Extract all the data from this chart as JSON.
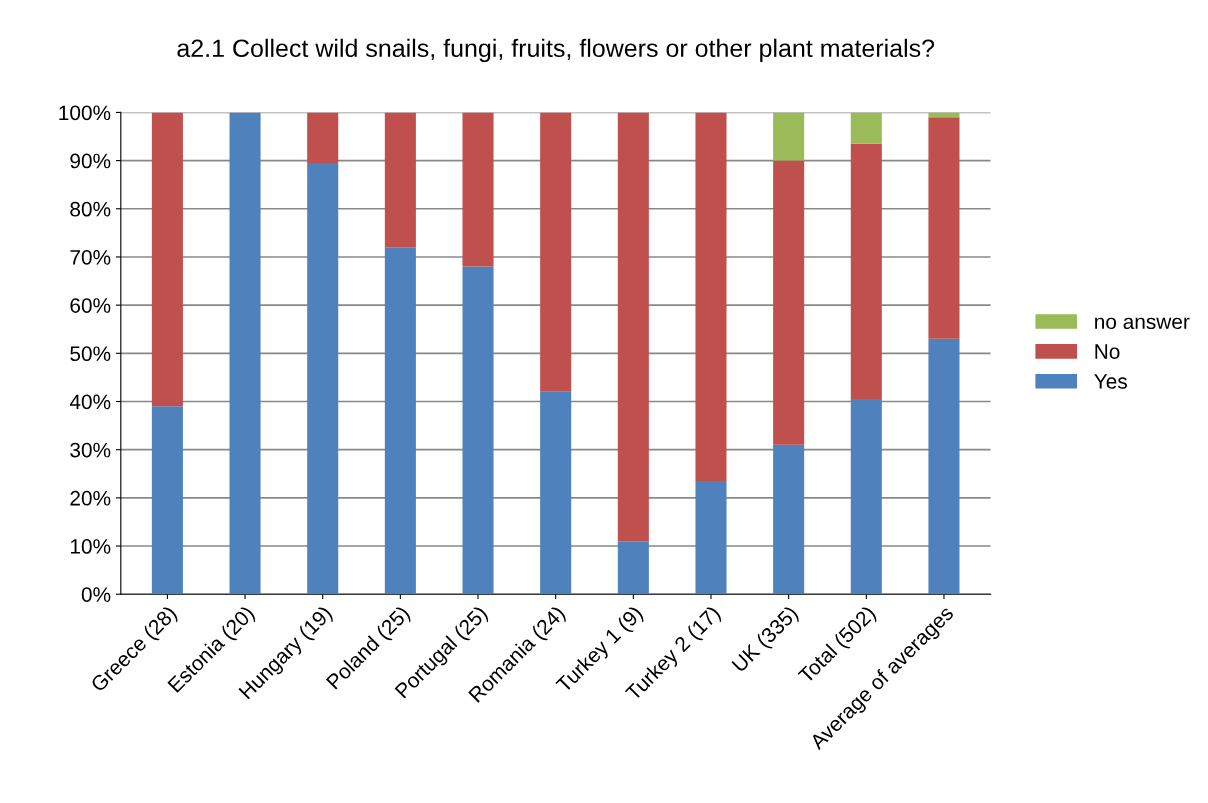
{
  "chart_data": {
    "type": "bar",
    "stacked": true,
    "title": "a2.1 Collect wild snails, fungi, fruits, flowers or other plant materials?",
    "categories": [
      "Greece (28)",
      "Estonia (20)",
      "Hungary (19)",
      "Poland (25)",
      "Portugal (25)",
      "Romania (24)",
      "Turkey 1 (9)",
      "Turkey 2 (17)",
      "UK (335)",
      "Total (502)",
      "Average of averages"
    ],
    "series": [
      {
        "name": "Yes",
        "color": "#4f81bd",
        "values": [
          39,
          100,
          89.5,
          72,
          68,
          42,
          11,
          23.5,
          31,
          40.5,
          53
        ]
      },
      {
        "name": "No",
        "color": "#c0504d",
        "values": [
          61,
          0,
          10.5,
          28,
          32,
          58,
          89,
          76.5,
          59,
          53,
          46
        ]
      },
      {
        "name": "no answer",
        "color": "#9bbb59",
        "values": [
          0,
          0,
          0,
          0,
          0,
          0,
          0,
          0,
          10,
          6.5,
          1
        ]
      }
    ],
    "ylim": [
      0,
      100
    ],
    "yticks": [
      {
        "value": 0,
        "label": "0%"
      },
      {
        "value": 10,
        "label": "10%"
      },
      {
        "value": 20,
        "label": "20%"
      },
      {
        "value": 30,
        "label": "30%"
      },
      {
        "value": 40,
        "label": "40%"
      },
      {
        "value": 50,
        "label": "50%"
      },
      {
        "value": 60,
        "label": "60%"
      },
      {
        "value": 70,
        "label": "70%"
      },
      {
        "value": 80,
        "label": "80%"
      },
      {
        "value": 90,
        "label": "90%"
      },
      {
        "value": 100,
        "label": "100%"
      }
    ],
    "grid": "y",
    "legend": "right"
  }
}
